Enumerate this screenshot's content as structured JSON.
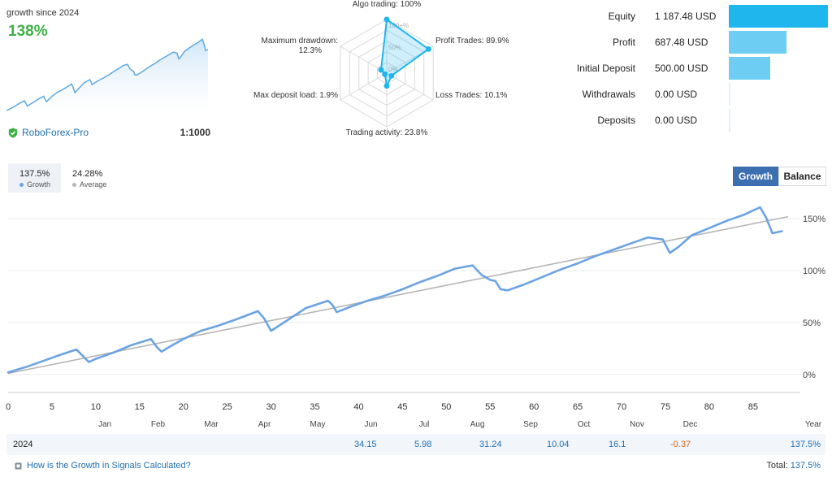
{
  "summary": {
    "since_label": "growth since 2024",
    "growth_value": "138%",
    "broker": "RoboForex-Pro",
    "leverage": "1:1000"
  },
  "radar": {
    "axes": [
      {
        "label": "Algo trading: 100%",
        "value": 100
      },
      {
        "label": "Profit Trades: 89.9%",
        "value": 89.9
      },
      {
        "label": "Loss Trades: 10.1%",
        "value": 10.1
      },
      {
        "label": "Trading activity: 23.8%",
        "value": 23.8
      },
      {
        "label": "Max deposit load: 1.9%",
        "value": 1.9
      },
      {
        "label": "Maximum drawdown:\n12.3%",
        "value": 12.3
      }
    ],
    "ring_labels": [
      "100+%",
      "50%",
      "0%"
    ]
  },
  "stats": [
    {
      "name": "Equity",
      "value": "1 187.48 USD",
      "amount": 1187.48,
      "color": "#1fb6ee"
    },
    {
      "name": "Profit",
      "value": "687.48 USD",
      "amount": 687.48,
      "color": "#6dcdf3"
    },
    {
      "name": "Initial Deposit",
      "value": "500.00 USD",
      "amount": 500.0,
      "color": "#6dcdf3"
    },
    {
      "name": "Withdrawals",
      "value": "0.00 USD",
      "amount": 0,
      "color": "#dff2fb"
    },
    {
      "name": "Deposits",
      "value": "0.00 USD",
      "amount": 0,
      "color": "#dff2fb"
    }
  ],
  "legend": {
    "growth_value": "137.5%",
    "growth_label": "Growth",
    "average_value": "24.28%",
    "average_label": "Average"
  },
  "toggles": {
    "growth": "Growth",
    "balance": "Balance"
  },
  "colors": {
    "growth_line": "#6ca3e3",
    "average_line": "#b5b5b5",
    "positive": "#1f6fb2",
    "negative": "#d2691e",
    "green": "#3cb043"
  },
  "chart_data": {
    "type": "line",
    "x_ticks": [
      0,
      5,
      10,
      15,
      20,
      25,
      30,
      35,
      40,
      45,
      50,
      55,
      60,
      65,
      70,
      75,
      80,
      85
    ],
    "month_labels": [
      "Jan",
      "Feb",
      "Mar",
      "Apr",
      "May",
      "Jun",
      "Jul",
      "Aug",
      "Sep",
      "Oct",
      "Nov",
      "Dec",
      "Year"
    ],
    "y_ticks": [
      0,
      50,
      100,
      150
    ],
    "y_tick_labels": [
      "0%",
      "50%",
      "100%",
      "150%"
    ],
    "xlim": [
      0,
      89
    ],
    "ylim": [
      -8,
      165
    ],
    "series": [
      {
        "name": "Growth",
        "x": [
          0,
          2,
          4,
          6,
          7.8,
          8.5,
          9.2,
          10,
          12,
          14,
          16.3,
          17,
          17.5,
          18.5,
          20,
          22,
          24,
          26,
          28.5,
          29.2,
          30,
          32,
          34,
          36.5,
          37,
          37.5,
          39,
          41,
          43,
          45,
          47,
          49,
          51,
          53,
          54,
          55,
          55.6,
          56.2,
          57,
          59,
          61,
          63,
          65,
          67,
          69,
          71,
          73,
          74.7,
          75.5,
          76.5,
          78,
          80,
          82,
          84,
          85.8,
          86.5,
          87.2,
          88.3
        ],
        "y": [
          2,
          7,
          13,
          19,
          24,
          18,
          12,
          15,
          21,
          28,
          34,
          26,
          22,
          27,
          34,
          42,
          47,
          53,
          61,
          54,
          42,
          53,
          64,
          71,
          67,
          60,
          65,
          71,
          76,
          82,
          89,
          95,
          102,
          105,
          96,
          91,
          90,
          82,
          81,
          87,
          94,
          101,
          107,
          114,
          120,
          126,
          132,
          130,
          117,
          123,
          134,
          141,
          148,
          154,
          161,
          151,
          136,
          138
        ]
      },
      {
        "name": "Average",
        "x": [
          0,
          89
        ],
        "y": [
          1,
          152
        ]
      }
    ]
  },
  "year_row": {
    "year": "2024",
    "months": [
      "34.15",
      "5.98",
      "31.24",
      "10.04",
      "16.1",
      "-0.37"
    ],
    "year_total": "137.5%"
  },
  "footer": {
    "link_text": "How is the Growth in Signals Calculated?",
    "total_label": "Total:",
    "total_value": "137.5%"
  }
}
